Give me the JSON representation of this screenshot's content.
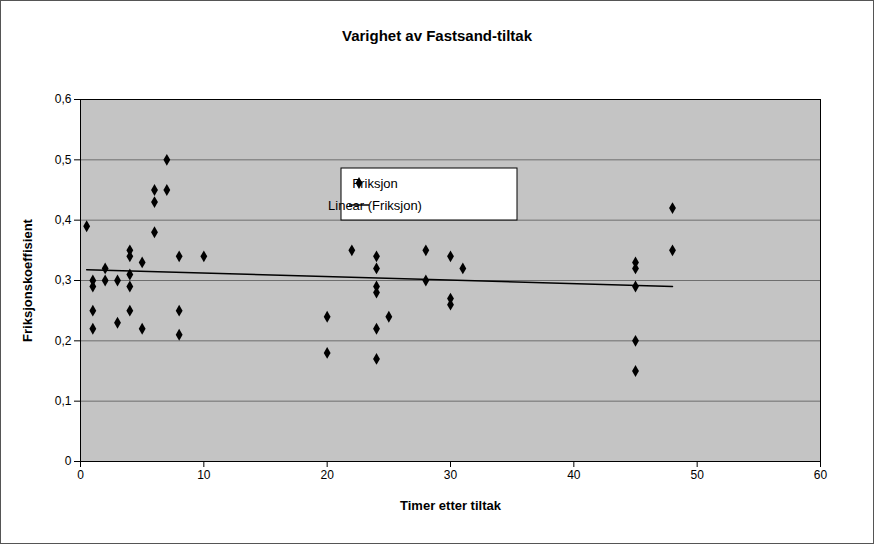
{
  "chart_data": {
    "type": "scatter",
    "title": "Varighet av Fastsand-tiltak",
    "x_label": "Timer etter tiltak",
    "y_label": "Friksjonskoeffisient",
    "xlim": [
      0,
      60
    ],
    "xticks": [
      0,
      10,
      20,
      30,
      40,
      50,
      60
    ],
    "ylim": [
      0,
      0.6
    ],
    "yticks": [
      0,
      {
        "value": 0.1,
        "label": "0,1"
      },
      {
        "value": 0.2,
        "label": "0,2"
      },
      {
        "value": 0.3,
        "label": "0,3"
      },
      {
        "value": 0.4,
        "label": "0,4"
      },
      {
        "value": 0.5,
        "label": "0,5"
      },
      {
        "value": 0.6,
        "label": "0,6"
      }
    ],
    "grid": true,
    "legend": "top",
    "series": [
      {
        "name": "Friksjon",
        "type": "scatter",
        "marker": "diamond",
        "color": "#000000",
        "x": [
          0.5,
          1,
          1,
          1,
          1,
          2,
          2,
          3,
          3,
          4,
          4,
          4,
          4,
          4,
          5,
          5,
          6,
          6,
          6,
          7,
          7,
          8,
          8,
          8,
          10,
          20,
          20,
          22,
          24,
          24,
          24,
          24,
          24,
          24,
          25,
          28,
          28,
          30,
          30,
          30,
          31,
          45,
          45,
          45,
          45,
          45,
          48,
          48
        ],
        "values": [
          0.39,
          0.3,
          0.29,
          0.25,
          0.22,
          0.32,
          0.3,
          0.3,
          0.23,
          0.35,
          0.34,
          0.31,
          0.29,
          0.25,
          0.33,
          0.22,
          0.45,
          0.43,
          0.38,
          0.5,
          0.45,
          0.34,
          0.25,
          0.21,
          0.34,
          0.24,
          0.18,
          0.35,
          0.34,
          0.32,
          0.29,
          0.28,
          0.22,
          0.17,
          0.24,
          0.35,
          0.3,
          0.34,
          0.27,
          0.26,
          0.32,
          0.33,
          0.32,
          0.29,
          0.2,
          0.15,
          0.42,
          0.35
        ]
      },
      {
        "name": "Linear (Friksjon)",
        "type": "line",
        "line_style": "solid",
        "color": "#000000",
        "x": [
          0.5,
          48
        ],
        "values": [
          0.318,
          0.29
        ]
      }
    ]
  }
}
